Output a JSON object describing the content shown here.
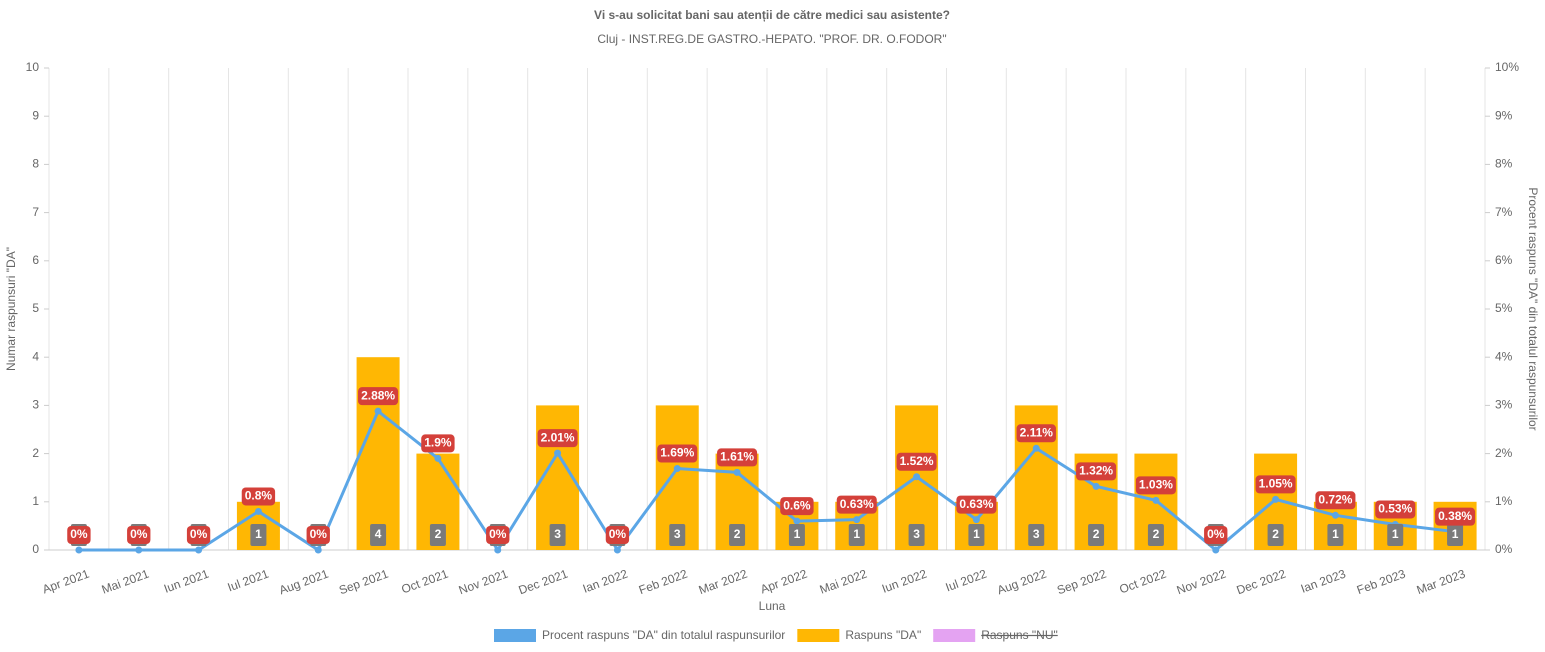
{
  "chart_data": {
    "type": "bar-line",
    "title": "Vi s-au solicitat bani sau atenții de către medici sau asistente?",
    "subtitle": "Cluj - INST.REG.DE GASTRO.-HEPATO. \"PROF. DR. O.FODOR\"",
    "x_label": "Luna",
    "y_label": "Numar raspunsuri \"DA\"",
    "y2_label": "Procent raspuns \"DA\" din totalul raspunsurilor",
    "categories": [
      "Apr 2021",
      "Mai 2021",
      "Iun 2021",
      "Iul 2021",
      "Aug 2021",
      "Sep 2021",
      "Oct 2021",
      "Nov 2021",
      "Dec 2021",
      "Ian 2022",
      "Feb 2022",
      "Mar 2022",
      "Apr 2022",
      "Mai 2022",
      "Iun 2022",
      "Iul 2022",
      "Aug 2022",
      "Sep 2022",
      "Oct 2022",
      "Nov 2022",
      "Dec 2022",
      "Ian 2023",
      "Feb 2023",
      "Mar 2023"
    ],
    "series": [
      {
        "name": "Procent raspuns \"DA\" din totalul raspunsurilor",
        "type": "line",
        "axis": "y2",
        "color": "#5ba6e6",
        "values": [
          0,
          0,
          0,
          0.8,
          0,
          2.88,
          1.9,
          0,
          2.01,
          0,
          1.69,
          1.61,
          0.6,
          0.63,
          1.52,
          0.63,
          2.11,
          1.32,
          1.03,
          0,
          1.05,
          0.72,
          0.53,
          0.38
        ],
        "value_labels": [
          "0%",
          "0%",
          "0%",
          "0.8%",
          "0%",
          "2.88%",
          "1.9%",
          "0%",
          "2.01%",
          "0%",
          "1.69%",
          "1.61%",
          "0.6%",
          "0.63%",
          "1.52%",
          "0.63%",
          "2.11%",
          "1.32%",
          "1.03%",
          "0%",
          "1.05%",
          "0.72%",
          "0.53%",
          "0.38%"
        ]
      },
      {
        "name": "Raspuns \"DA\"",
        "type": "bar",
        "color": "#ffb703",
        "values": [
          0,
          0,
          0,
          1,
          0,
          4,
          2,
          0,
          3,
          0,
          3,
          2,
          1,
          1,
          3,
          1,
          3,
          2,
          2,
          0,
          2,
          1,
          1,
          1
        ]
      },
      {
        "name": "Raspuns \"NU\"",
        "type": "bar",
        "color": "#e4a3f2",
        "hidden": true
      }
    ],
    "ylim": [
      0,
      10
    ],
    "yticks": [
      0,
      1,
      2,
      3,
      4,
      5,
      6,
      7,
      8,
      9,
      10
    ],
    "y2lim": [
      0,
      10
    ],
    "y2ticks": [
      {
        "value": 0,
        "label": "0%"
      },
      {
        "value": 1,
        "label": "1%"
      },
      {
        "value": 2,
        "label": "2%"
      },
      {
        "value": 3,
        "label": "3%"
      },
      {
        "value": 4,
        "label": "4%"
      },
      {
        "value": 5,
        "label": "5%"
      },
      {
        "value": 6,
        "label": "6%"
      },
      {
        "value": 7,
        "label": "7%"
      },
      {
        "value": 8,
        "label": "8%"
      },
      {
        "value": 9,
        "label": "9%"
      },
      {
        "value": 10,
        "label": "10%"
      }
    ],
    "grid": "x",
    "legend": "bottom"
  }
}
